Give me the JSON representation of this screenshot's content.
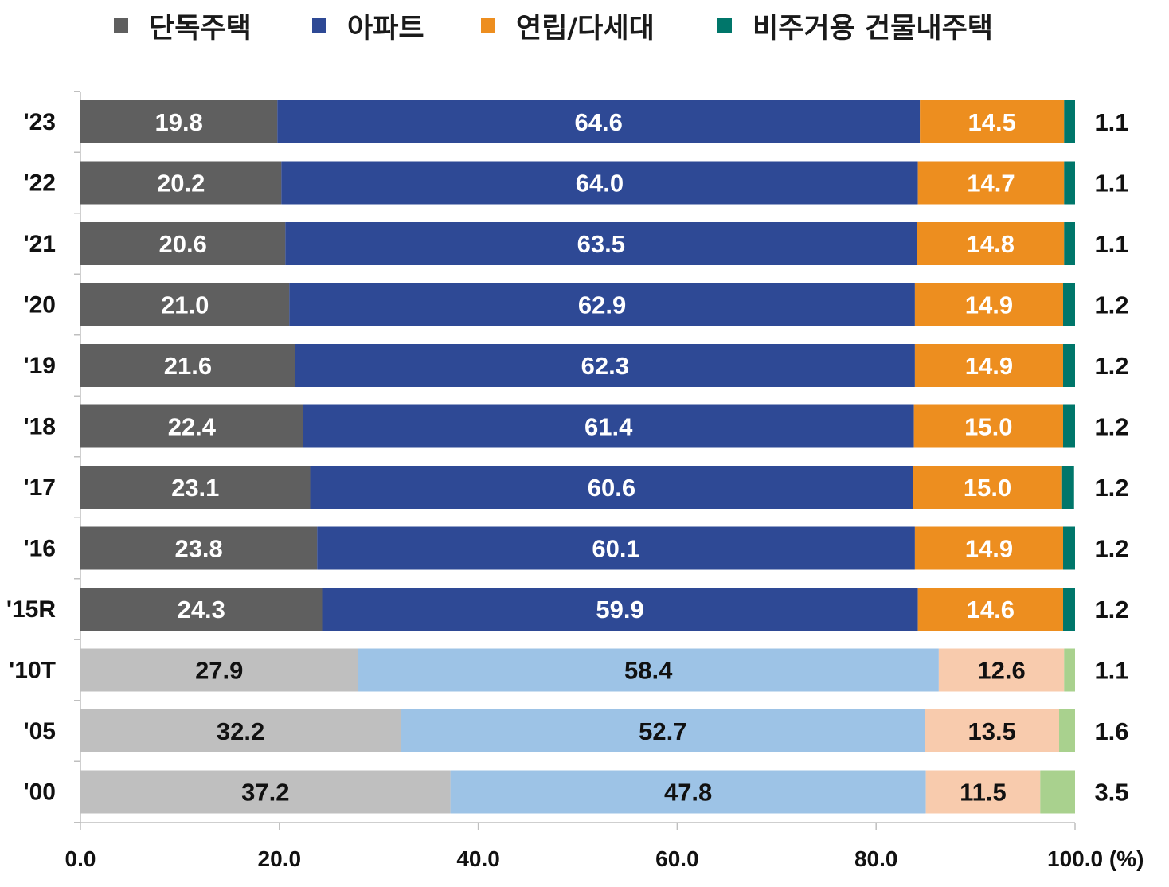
{
  "chart_data": {
    "type": "bar",
    "orientation": "horizontal",
    "stacked": true,
    "categories": [
      "'23",
      "'22",
      "'21",
      "'20",
      "'19",
      "'18",
      "'17",
      "'16",
      "'15R",
      "'10T",
      "'05",
      "'00"
    ],
    "series": [
      {
        "name": "단독주택",
        "color": "#5f5f5f",
        "light_color": "#bfbfbf",
        "values": [
          19.8,
          20.2,
          20.6,
          21.0,
          21.6,
          22.4,
          23.1,
          23.8,
          24.3,
          27.9,
          32.2,
          37.2
        ]
      },
      {
        "name": "아파트",
        "color": "#2e4995",
        "light_color": "#9dc3e6",
        "values": [
          64.6,
          64.0,
          63.5,
          62.9,
          62.3,
          61.4,
          60.6,
          60.1,
          59.9,
          58.4,
          52.7,
          47.8
        ]
      },
      {
        "name": "연립/다세대",
        "color": "#ed8e1f",
        "light_color": "#f8cbad",
        "values": [
          14.5,
          14.7,
          14.8,
          14.9,
          14.9,
          15.0,
          15.0,
          14.9,
          14.6,
          12.6,
          13.5,
          11.5
        ]
      },
      {
        "name": "비주거용 건물내주택",
        "color": "#00766a",
        "light_color": "#a9d18e",
        "values": [
          1.1,
          1.1,
          1.1,
          1.2,
          1.2,
          1.2,
          1.2,
          1.2,
          1.2,
          1.1,
          1.6,
          3.5
        ]
      }
    ],
    "light_categories": [
      "'10T",
      "'05",
      "'00"
    ],
    "xlim": [
      0,
      100
    ],
    "xticks": [
      0,
      20,
      40,
      60,
      80,
      100
    ],
    "xtick_labels": [
      "0.0",
      "20.0",
      "40.0",
      "60.0",
      "80.0",
      "100.0 (%)"
    ],
    "legend_position": "top",
    "grid": false,
    "segment_labels": "inside",
    "last_series_label": "outside-right",
    "dark_text_color": "#111111",
    "light_text_color": "#ffffff"
  }
}
